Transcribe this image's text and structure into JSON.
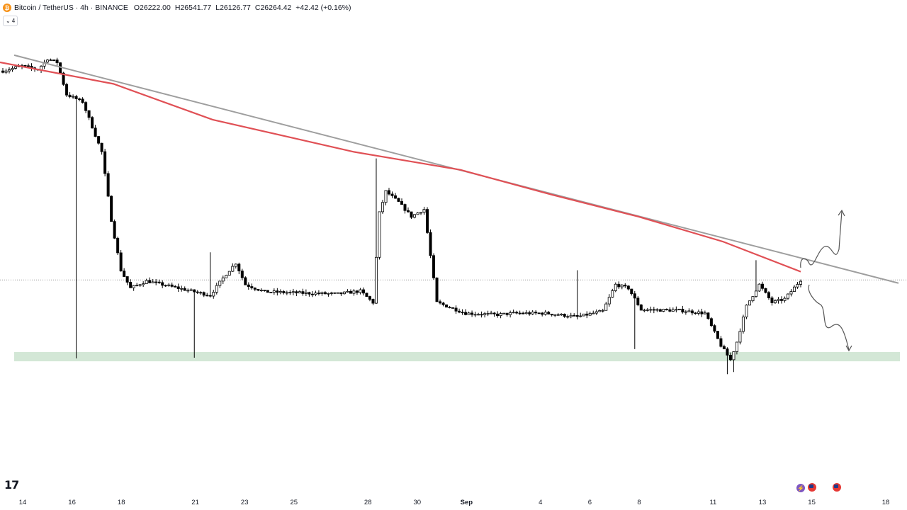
{
  "header": {
    "symbol": "Bitcoin / TetherUS · 4h · BINANCE",
    "open": "O26222.00",
    "high": "H26541.77",
    "low": "L26126.77",
    "close": "C26264.42",
    "change": "+42.42 (+0.16%)",
    "indicator_toggle": "4",
    "logo_glyph": "₿"
  },
  "colors": {
    "up": "#ffffff",
    "down": "#000000",
    "candle_border": "#000000",
    "moving_average": "#e05055",
    "trendline": "#9e9e9e",
    "support_zone": "#d3e7d6",
    "price_line": "#9e9e9e",
    "axis_text": "#131722",
    "sketch": "#555555"
  },
  "chart_data": {
    "type": "candlestick",
    "title": "",
    "xlabel": "",
    "ylabel": "",
    "timeframe": "4h",
    "x_tick_labels": [
      "14",
      "16",
      "18",
      "21",
      "23",
      "25",
      "28",
      "30",
      "Sep",
      "4",
      "6",
      "8",
      "11",
      "13",
      "15",
      "18"
    ],
    "x_start": "Aug 14",
    "x_end": "Sep 18",
    "moving_average": {
      "start_price": 29300,
      "at_aug_30": 27900,
      "at_sep_13": 26380
    },
    "trendline": {
      "start_price": 29400,
      "at_aug_30": 27950,
      "end_price": 26220
    },
    "support_zone": {
      "top": 25260,
      "bottom": 25130
    },
    "last_price": 26264.42,
    "key_points": [
      {
        "date": "Aug 14",
        "price": 29180
      },
      {
        "date": "Aug 15",
        "price": 29300
      },
      {
        "date": "Aug 17",
        "price": 28500
      },
      {
        "date": "Aug 17 (low)",
        "price": 25170
      },
      {
        "date": "Aug 18",
        "price": 26200
      },
      {
        "date": "Aug 22 (low)",
        "price": 25180
      },
      {
        "date": "Aug 23 (high)",
        "price": 26650
      },
      {
        "date": "Aug 29 (high)",
        "price": 27960
      },
      {
        "date": "Aug 31",
        "price": 26000
      },
      {
        "date": "Sep 1",
        "price": 25750
      },
      {
        "date": "Sep 8 (high)",
        "price": 26400
      },
      {
        "date": "Sep 11 (low)",
        "price": 24950
      },
      {
        "date": "Sep 12 (high)",
        "price": 26540
      },
      {
        "date": "Sep 14",
        "price": 26264
      }
    ],
    "scenarios": [
      "breakout-up",
      "rejection-down"
    ],
    "grid": false,
    "legend": "none"
  },
  "event_icons": [
    "bolt-icon",
    "us-flag-icon",
    "us-flag-icon"
  ],
  "brand": "17"
}
